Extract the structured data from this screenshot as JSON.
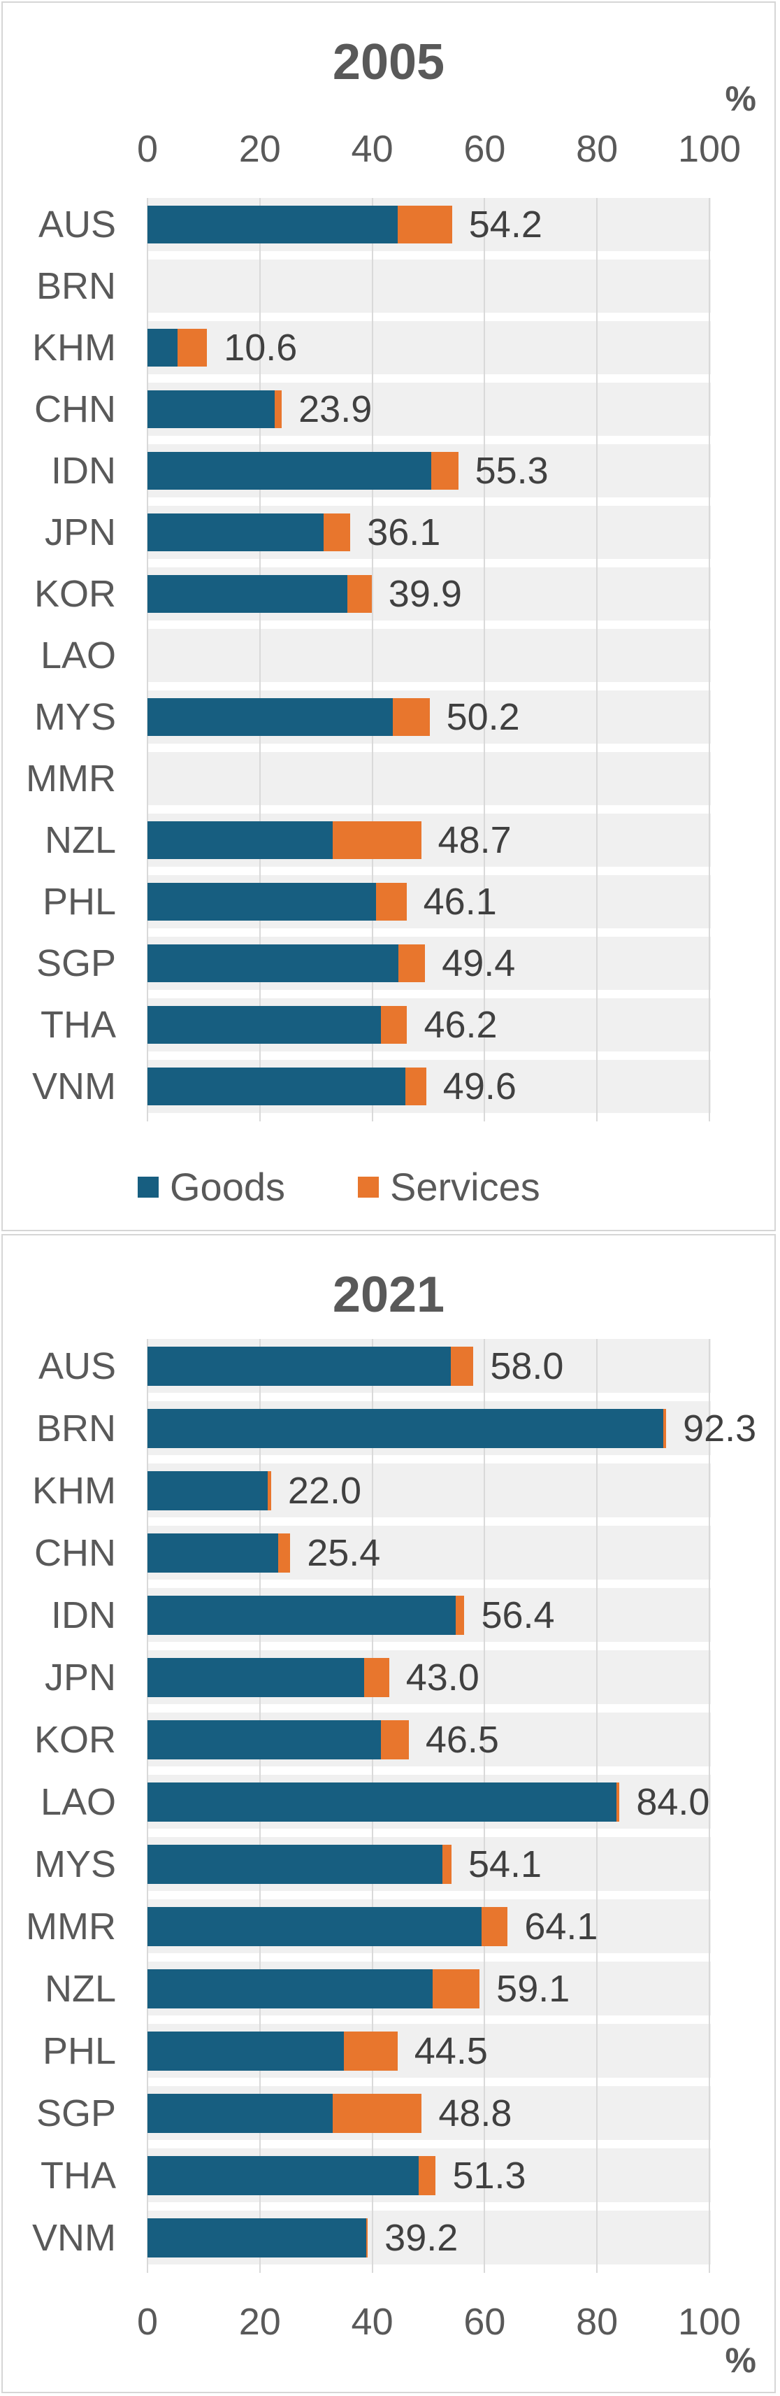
{
  "colors": {
    "goods": "#175E80",
    "services": "#E8762D",
    "band": "#F0F0F0",
    "gridline": "#D9D9D9",
    "axis_text": "#595959",
    "data_label": "#404040",
    "card_border": "#D6D6D6"
  },
  "legend": {
    "goods_label": "Goods",
    "services_label": "Services"
  },
  "chart_data": [
    {
      "type": "bar",
      "orientation": "horizontal",
      "stacked": true,
      "title": "2005",
      "unit_label": "%",
      "axis": {
        "ticks": [
          0,
          20,
          40,
          60,
          80,
          100
        ],
        "min": 0,
        "max": 100,
        "position": "top",
        "grid": true
      },
      "legend_position": "bottom",
      "categories": [
        "AUS",
        "BRN",
        "KHM",
        "CHN",
        "IDN",
        "JPN",
        "KOR",
        "LAO",
        "MYS",
        "MMR",
        "NZL",
        "PHL",
        "SGP",
        "THA",
        "VNM"
      ],
      "series": [
        {
          "name": "Goods",
          "values": [
            44.5,
            null,
            5.3,
            22.6,
            50.5,
            31.3,
            35.6,
            null,
            43.6,
            null,
            33.0,
            40.7,
            44.6,
            41.5,
            45.9
          ]
        },
        {
          "name": "Services",
          "values": [
            9.7,
            null,
            5.3,
            1.3,
            4.8,
            4.8,
            4.3,
            null,
            6.6,
            null,
            15.7,
            5.4,
            4.8,
            4.7,
            3.7
          ]
        }
      ],
      "total_labels": [
        "54.2",
        null,
        "10.6",
        "23.9",
        "55.3",
        "36.1",
        "39.9",
        null,
        "50.2",
        null,
        "48.7",
        "46.1",
        "49.4",
        "46.2",
        "49.6"
      ]
    },
    {
      "type": "bar",
      "orientation": "horizontal",
      "stacked": true,
      "title": "2021",
      "unit_label": "%",
      "axis": {
        "ticks": [
          0,
          20,
          40,
          60,
          80,
          100
        ],
        "min": 0,
        "max": 100,
        "position": "bottom",
        "grid": true
      },
      "legend_position": "none",
      "categories": [
        "AUS",
        "BRN",
        "KHM",
        "CHN",
        "IDN",
        "JPN",
        "KOR",
        "LAO",
        "MYS",
        "MMR",
        "NZL",
        "PHL",
        "SGP",
        "THA",
        "VNM"
      ],
      "series": [
        {
          "name": "Goods",
          "values": [
            54.0,
            91.8,
            21.4,
            23.3,
            54.8,
            38.5,
            41.6,
            83.4,
            52.5,
            59.4,
            50.8,
            35.0,
            33.0,
            48.3,
            38.9
          ]
        },
        {
          "name": "Services",
          "values": [
            4.0,
            0.5,
            0.6,
            2.1,
            1.6,
            4.5,
            4.9,
            0.6,
            1.6,
            4.7,
            8.3,
            9.5,
            15.8,
            3.0,
            0.3
          ]
        }
      ],
      "total_labels": [
        "58.0",
        "92.3",
        "22.0",
        "25.4",
        "56.4",
        "43.0",
        "46.5",
        "84.0",
        "54.1",
        "64.1",
        "59.1",
        "44.5",
        "48.8",
        "51.3",
        "39.2"
      ]
    }
  ]
}
